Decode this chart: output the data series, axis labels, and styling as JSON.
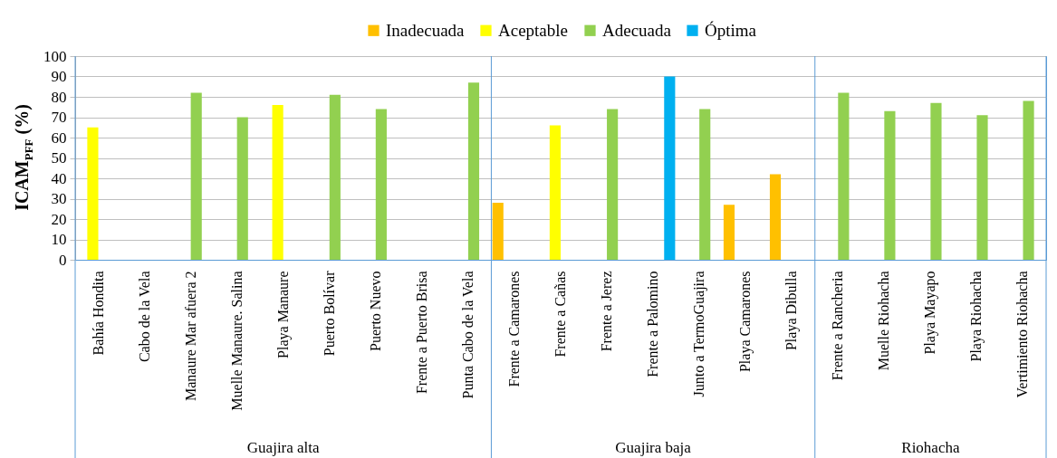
{
  "chart_data": {
    "type": "bar",
    "ylabel": "ICAM$_{PFF}$ (%)",
    "categories": [
      "Bahía Hondita",
      "Cabo de la Vela",
      "Manaure Mar afuera 2",
      "Muelle Manaure. Salina",
      "Playa Manaure",
      "Puerto Bolívar",
      "Puerto Nuevo",
      "Frente a Puerto Brisa",
      "Punta Cabo de la Vela",
      "Frente a Camarones",
      "Frente a Cañas",
      "Frente a Jerez",
      "Frente a Palomino",
      "Junto a TermoGuajira",
      "Playa Camarones",
      "Playa Dibulla",
      "Frente a Rancheria",
      "Muelle Riohacha",
      "Playa Mayapo",
      "Playa Riohacha",
      "Vertimiento Riohacha"
    ],
    "series": [
      {
        "name": "Inadecuada",
        "color": "#ffc000",
        "values": [
          null,
          null,
          null,
          null,
          null,
          null,
          null,
          null,
          null,
          28,
          null,
          null,
          null,
          null,
          27,
          42,
          null,
          null,
          null,
          null,
          null
        ]
      },
      {
        "name": "Aceptable",
        "color": "#ffff00",
        "values": [
          65,
          null,
          null,
          null,
          76,
          null,
          null,
          null,
          null,
          null,
          66,
          null,
          null,
          null,
          null,
          null,
          null,
          null,
          null,
          null,
          null
        ]
      },
      {
        "name": "Adecuada",
        "color": "#92d050",
        "values": [
          null,
          null,
          82,
          70,
          null,
          81,
          74,
          null,
          87,
          null,
          null,
          74,
          null,
          74,
          null,
          null,
          82,
          73,
          77,
          71,
          78
        ]
      },
      {
        "name": "Óptima",
        "color": "#00b0f0",
        "values": [
          null,
          null,
          null,
          null,
          null,
          null,
          null,
          null,
          null,
          null,
          null,
          null,
          90,
          null,
          null,
          null,
          null,
          null,
          null,
          null,
          null
        ]
      }
    ],
    "ylim": [
      0,
      100
    ],
    "yticks": [
      0,
      10,
      20,
      30,
      40,
      50,
      60,
      70,
      80,
      90,
      100
    ],
    "grid": "y",
    "legend": "top",
    "annotations": [
      "Guajira alta",
      "Guajira baja",
      "Riohacha"
    ]
  }
}
